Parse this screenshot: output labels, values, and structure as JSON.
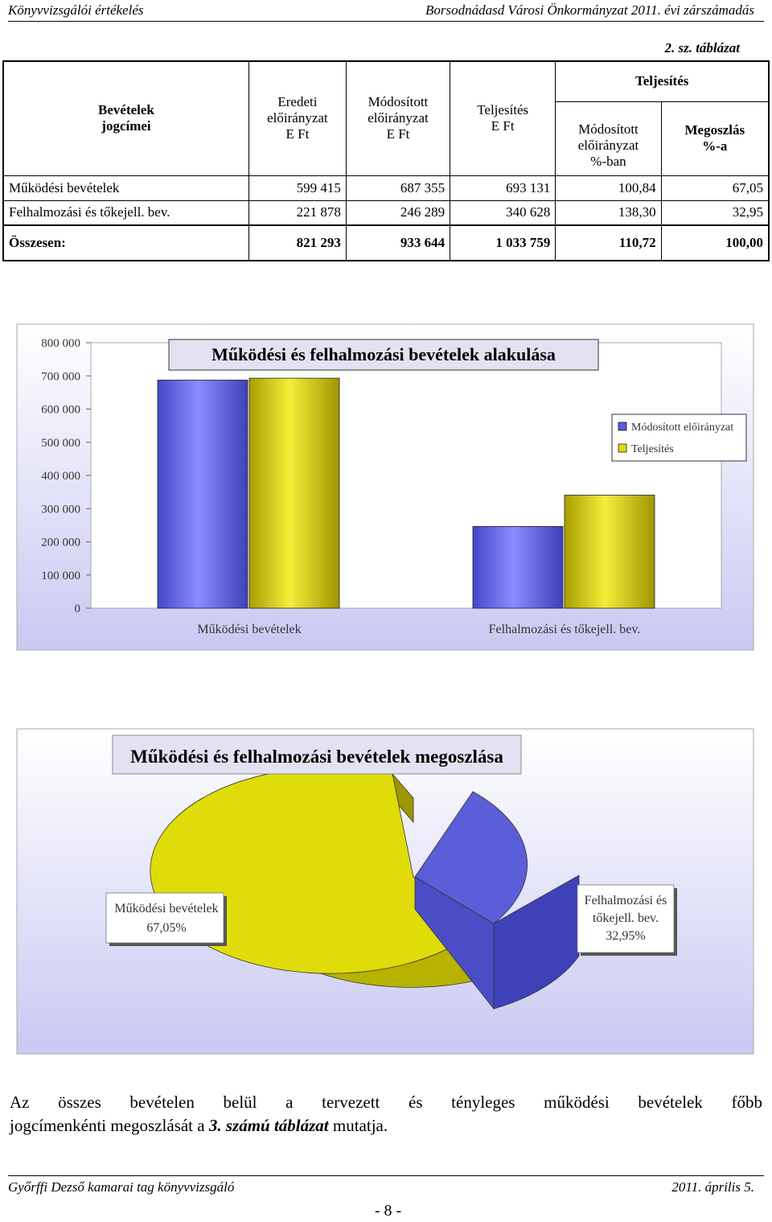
{
  "header": {
    "left": "Könyvvizsgálói értékelés",
    "right": "Borsodnádasd Városi Önkormányzat 2011. évi zárszámadás"
  },
  "table_caption": "2. sz. táblázat",
  "table": {
    "h_col1": [
      "Bevételek",
      "jogcímei"
    ],
    "h_col2": [
      "Eredeti",
      "előirányzat",
      "E Ft"
    ],
    "h_col3": [
      "Módosított",
      "előirányzat",
      "E Ft"
    ],
    "h_col4": [
      "Teljesítés",
      "E Ft"
    ],
    "h_group": "Teljesítés",
    "h_sub1": [
      "Módosított",
      "előirányzat",
      "%-ban"
    ],
    "h_sub2": [
      "Megoszlás",
      "%-a"
    ],
    "rows": [
      [
        "Működési bevételek",
        "599 415",
        "687 355",
        "693 131",
        "100,84",
        "67,05"
      ],
      [
        "Felhalmozási és tőkejell. bev.",
        "221 878",
        "246 289",
        "340 628",
        "138,30",
        "32,95"
      ]
    ],
    "total": [
      "Összesen:",
      "821 293",
      "933 644",
      "1 033 759",
      "110,72",
      "100,00"
    ]
  },
  "chart_data": [
    {
      "type": "bar",
      "title": "Működési és felhalmozási bevételek alakulása",
      "categories": [
        "Működési bevételek",
        "Felhalmozási és tőkejell. bev."
      ],
      "series": [
        {
          "name": "Módosított előirányzat",
          "values": [
            687355,
            246289
          ],
          "color": "#7b7ff5"
        },
        {
          "name": "Teljesítés",
          "values": [
            693131,
            340628
          ],
          "color": "#f0e61e"
        }
      ],
      "ylim": [
        0,
        800000
      ],
      "yticks": [
        "0",
        "100 000",
        "200 000",
        "300 000",
        "400 000",
        "500 000",
        "600 000",
        "700 000",
        "800 000"
      ],
      "legend": "right"
    },
    {
      "type": "pie",
      "title": "Működési és felhalmozási bevételek megoszlása",
      "slices": [
        {
          "label": [
            "Működési bevételek",
            "67,05%"
          ],
          "value": 67.05,
          "color": "#e0dc0a"
        },
        {
          "label": [
            "Felhalmozási és",
            "tőkejell. bev.",
            "32,95%"
          ],
          "value": 32.95,
          "color": "#5a5ed8"
        }
      ]
    }
  ],
  "paragraph": {
    "line1": "Az összes bevételen belül a tervezett és tényleges működési bevételek főbb",
    "line2_a": "jogcímenkénti megoszlását a ",
    "line2_b": "3. számú táblázat",
    "line2_c": " mutatja."
  },
  "footer": {
    "left": "Győrffi Dezső kamarai tag könyvvizsgáló",
    "right": "2011. április 5."
  },
  "page_number": "- 8 -"
}
